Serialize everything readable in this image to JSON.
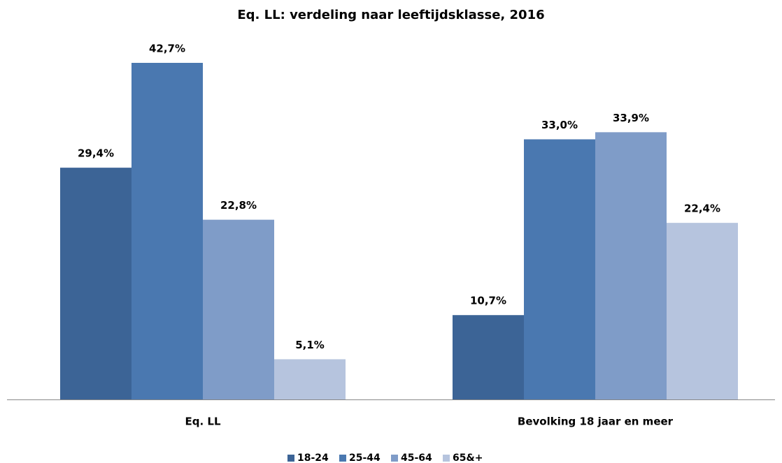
{
  "chart_data": {
    "type": "bar",
    "title": "Eq. LL: verdeling naar leeftijdsklasse, 2016",
    "categories": [
      "Eq. LL",
      "Bevolking 18 jaar en meer"
    ],
    "series": [
      {
        "name": "18-24",
        "color": "#3c6496",
        "values": [
          29.4,
          10.7
        ],
        "value_labels": [
          "29,4%",
          "10,7%"
        ]
      },
      {
        "name": "25-44",
        "color": "#4a78b0",
        "values": [
          42.7,
          33.0
        ],
        "value_labels": [
          "42,7%",
          "33,0%"
        ]
      },
      {
        "name": "45-64",
        "color": "#7f9cc8",
        "values": [
          22.8,
          33.9
        ],
        "value_labels": [
          "22,8%",
          "33,9%"
        ]
      },
      {
        "name": "65&+",
        "color": "#b6c4de",
        "values": [
          5.1,
          22.4
        ],
        "value_labels": [
          "5,1%",
          "22,4%"
        ]
      }
    ],
    "legend": "bottom"
  }
}
